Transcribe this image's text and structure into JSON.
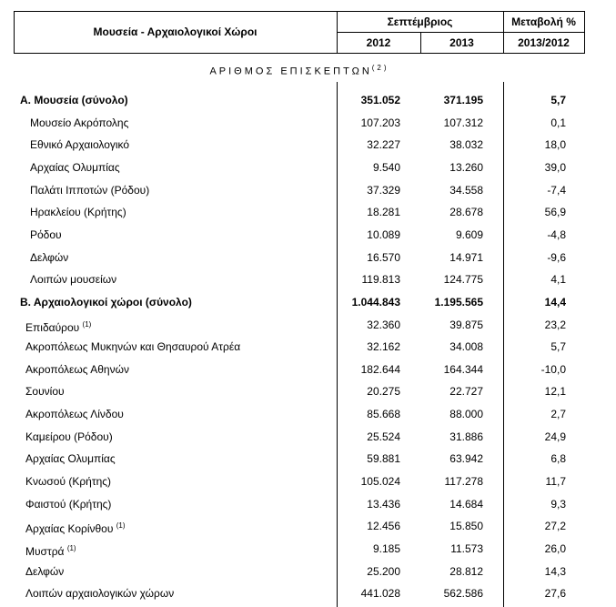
{
  "header": {
    "title": "Μουσεία - Αρχαιολογικοί Χώροι",
    "period": "Σεπτέμβριος",
    "year1": "2012",
    "year2": "2013",
    "change_title": "Μεταβολή %",
    "change_period": "2013/2012"
  },
  "subtitle": {
    "text": "ΑΡΙΘΜΟΣ ΕΠΙΣΚΕΠΤΩΝ",
    "note": "(2)"
  },
  "sections": [
    {
      "total": {
        "name": "Α. Μουσεία (σύνολο)",
        "v2012": "351.052",
        "v2013": "371.195",
        "change": "5,7"
      },
      "items": [
        {
          "name": "Μουσείο Ακρόπολης",
          "v2012": "107.203",
          "v2013": "107.312",
          "change": "0,1"
        },
        {
          "name": "Εθνικό Αρχαιολογικό",
          "v2012": "32.227",
          "v2013": "38.032",
          "change": "18,0"
        },
        {
          "name": "Αρχαίας Ολυμπίας",
          "v2012": "9.540",
          "v2013": "13.260",
          "change": "39,0"
        },
        {
          "name": "Παλάτι Ιπποτών (Ρόδου)",
          "v2012": "37.329",
          "v2013": "34.558",
          "change": "-7,4"
        },
        {
          "name": "Ηρακλείου (Κρήτης)",
          "v2012": "18.281",
          "v2013": "28.678",
          "change": "56,9"
        },
        {
          "name": "Ρόδου",
          "v2012": "10.089",
          "v2013": "9.609",
          "change": "-4,8"
        },
        {
          "name": "Δελφών",
          "v2012": "16.570",
          "v2013": "14.971",
          "change": "-9,6"
        },
        {
          "name": "Λοιπών μουσείων",
          "v2012": "119.813",
          "v2013": "124.775",
          "change": "4,1"
        }
      ]
    },
    {
      "total": {
        "name": "Β. Αρχαιολογικοί χώροι (σύνολο)",
        "v2012": "1.044.843",
        "v2013": "1.195.565",
        "change": "14,4"
      },
      "items": [
        {
          "name": "Επιδαύρου",
          "note": "(1)",
          "v2012": "32.360",
          "v2013": "39.875",
          "change": "23,2"
        },
        {
          "name": "Ακροπόλεως Μυκηνών και Θησαυρού Ατρέα",
          "v2012": "32.162",
          "v2013": "34.008",
          "change": "5,7"
        },
        {
          "name": "Ακροπόλεως Αθηνών",
          "v2012": "182.644",
          "v2013": "164.344",
          "change": "-10,0"
        },
        {
          "name": "Σουνίου",
          "v2012": "20.275",
          "v2013": "22.727",
          "change": "12,1"
        },
        {
          "name": "Ακροπόλεως Λίνδου",
          "v2012": "85.668",
          "v2013": "88.000",
          "change": "2,7"
        },
        {
          "name": "Καμείρου (Ρόδου)",
          "v2012": "25.524",
          "v2013": "31.886",
          "change": "24,9"
        },
        {
          "name": "Αρχαίας Ολυμπίας",
          "v2012": "59.881",
          "v2013": "63.942",
          "change": "6,8"
        },
        {
          "name": "Κνωσού (Κρήτης)",
          "v2012": "105.024",
          "v2013": "117.278",
          "change": "11,7"
        },
        {
          "name": "Φαιστού (Κρήτης)",
          "v2012": "13.436",
          "v2013": "14.684",
          "change": "9,3"
        },
        {
          "name": "Αρχαίας Κορίνθου",
          "note": "(1)",
          "v2012": "12.456",
          "v2013": "15.850",
          "change": "27,2"
        },
        {
          "name": "Μυστρά",
          "note": "(1)",
          "v2012": "9.185",
          "v2013": "11.573",
          "change": "26,0"
        },
        {
          "name": "Δελφών",
          "v2012": "25.200",
          "v2013": "28.812",
          "change": "14,3"
        },
        {
          "name": "Λοιπών αρχαιολογικών χώρων",
          "v2012": "441.028",
          "v2013": "562.586",
          "change": "27,6"
        }
      ]
    }
  ]
}
